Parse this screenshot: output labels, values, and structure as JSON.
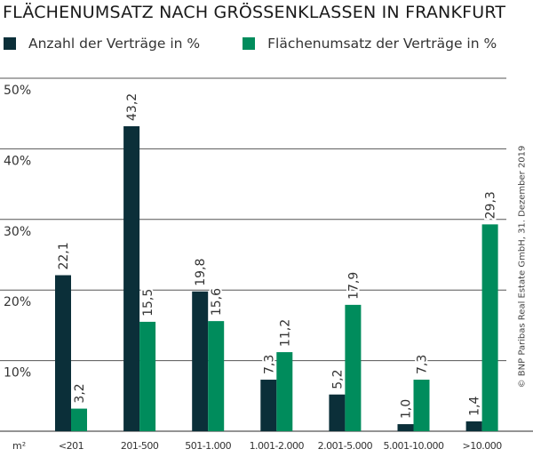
{
  "chart_data": {
    "type": "bar",
    "title": "FLÄCHENUMSATZ NACH GRÖSSENKLASSEN IN FRANKFURT",
    "xlabel": "m²",
    "ylabel": "",
    "ylim": [
      0,
      50
    ],
    "yticks": [
      10,
      20,
      30,
      40,
      50
    ],
    "ytick_labels": [
      "10%",
      "20%",
      "30%",
      "40%",
      "50%"
    ],
    "grid": true,
    "legend_position": "top-left",
    "categories": [
      "<201",
      "201-500",
      "501-1.000",
      "1.001-2.000",
      "2.001-5.000",
      "5.001-10.000",
      ">10.000"
    ],
    "series": [
      {
        "name": "Anzahl der Verträge in %",
        "color": "#0b2f39",
        "values": [
          22.1,
          43.2,
          19.8,
          7.3,
          5.2,
          1.0,
          1.4
        ],
        "labels": [
          "22,1",
          "43,2",
          "19,8",
          "7,3",
          "5,2",
          "1,0",
          "1,4"
        ]
      },
      {
        "name": "Flächenumsatz der Verträge in %",
        "color": "#008c5c",
        "values": [
          3.2,
          15.5,
          15.6,
          11.2,
          17.9,
          7.3,
          29.3
        ],
        "labels": [
          "3,2",
          "15,5",
          "15,6",
          "11,2",
          "17,9",
          "7,3",
          "29,3"
        ]
      }
    ]
  },
  "credit": "© BNP Paribas Real Estate GmbH, 31. Dezember 2019"
}
